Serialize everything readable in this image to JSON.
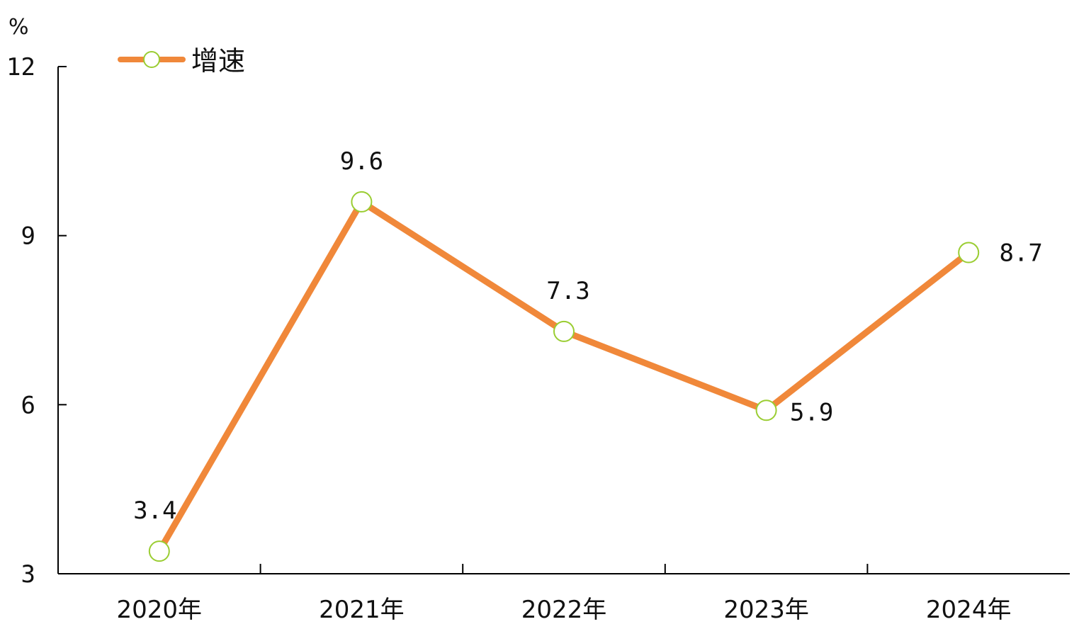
{
  "chart_data": {
    "type": "line",
    "categories": [
      "2020年",
      "2021年",
      "2022年",
      "2023年",
      "2024年"
    ],
    "series": [
      {
        "name": "增速",
        "values": [
          3.4,
          9.6,
          7.3,
          5.9,
          8.7
        ]
      }
    ],
    "data_labels": [
      "3.4",
      "9.6",
      "7.3",
      "5.9",
      "8.7"
    ],
    "y_unit": "%",
    "ylim": [
      3,
      12
    ],
    "yticks": [
      3,
      6,
      9,
      12
    ],
    "ytick_labels": [
      "3",
      "6",
      "9",
      "12"
    ],
    "grid": false,
    "legend_position": "top-left",
    "colors": {
      "line": "#F0883A",
      "marker_fill": "#FFFFFF",
      "marker_stroke": "#9ACD32",
      "axis": "#000000"
    }
  }
}
